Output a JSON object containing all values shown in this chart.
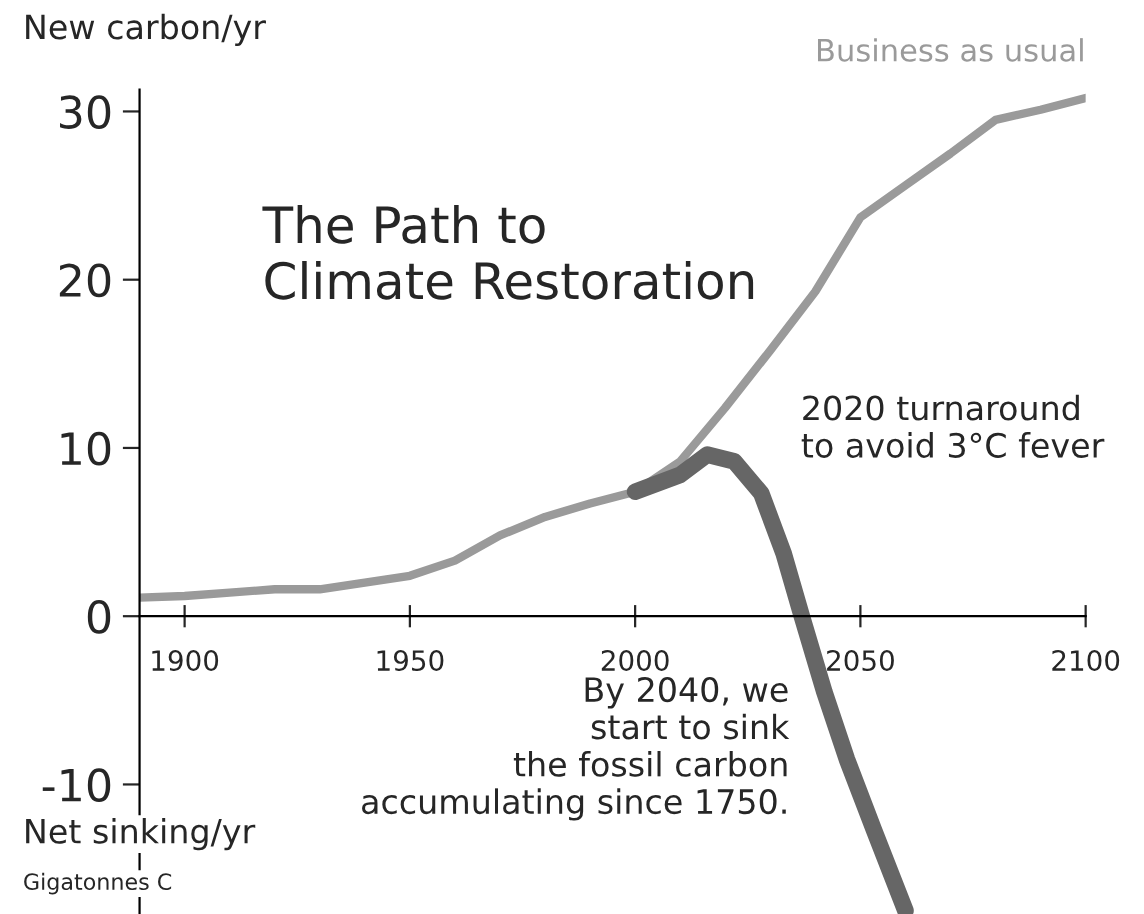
{
  "chart_data": {
    "type": "line",
    "title": "The Path to\nClimate Restoration",
    "ylabel": "New carbon/yr",
    "annotations": [
      "2020 turnaround\nto avoid 3°C fever",
      "By 2040, we\nstart to sink\nthe fossil carbon\naccumulating since 1750.",
      "Net sinking/yr",
      "Gigatonnes C"
    ],
    "series": [
      {
        "name": "Business as usual",
        "color": "#9a9a9a",
        "x": [
          1890,
          1900,
          1910,
          1920,
          1930,
          1940,
          1950,
          1960,
          1970,
          1980,
          1990,
          2000,
          2010,
          2020,
          2030,
          2040,
          2050,
          2060,
          2070,
          2080,
          2090,
          2100
        ],
        "values": [
          1.1,
          1.2,
          1.4,
          1.6,
          1.6,
          2.0,
          2.4,
          3.3,
          4.8,
          5.9,
          6.7,
          7.4,
          9.2,
          12.4,
          15.8,
          19.3,
          23.7,
          25.6,
          27.5,
          29.5,
          30.1,
          30.8
        ]
      },
      {
        "color": "#666666",
        "x": [
          2000,
          2010,
          2016,
          2022,
          2028,
          2033,
          2037,
          2042,
          2047,
          2053,
          2060
        ],
        "values": [
          7.4,
          8.4,
          9.6,
          9.2,
          7.3,
          3.7,
          0,
          -4.5,
          -8.5,
          -12.7,
          -17.5
        ]
      }
    ],
    "xlim": [
      1890,
      2100
    ],
    "ylim": [
      -17.7,
      31.3
    ],
    "xticks": [
      1900,
      1950,
      2000,
      2050,
      2100
    ],
    "yticks": [
      -10,
      0,
      10,
      20,
      30
    ],
    "grid": false,
    "legend": false,
    "line_style": "solid",
    "marker": "none"
  }
}
